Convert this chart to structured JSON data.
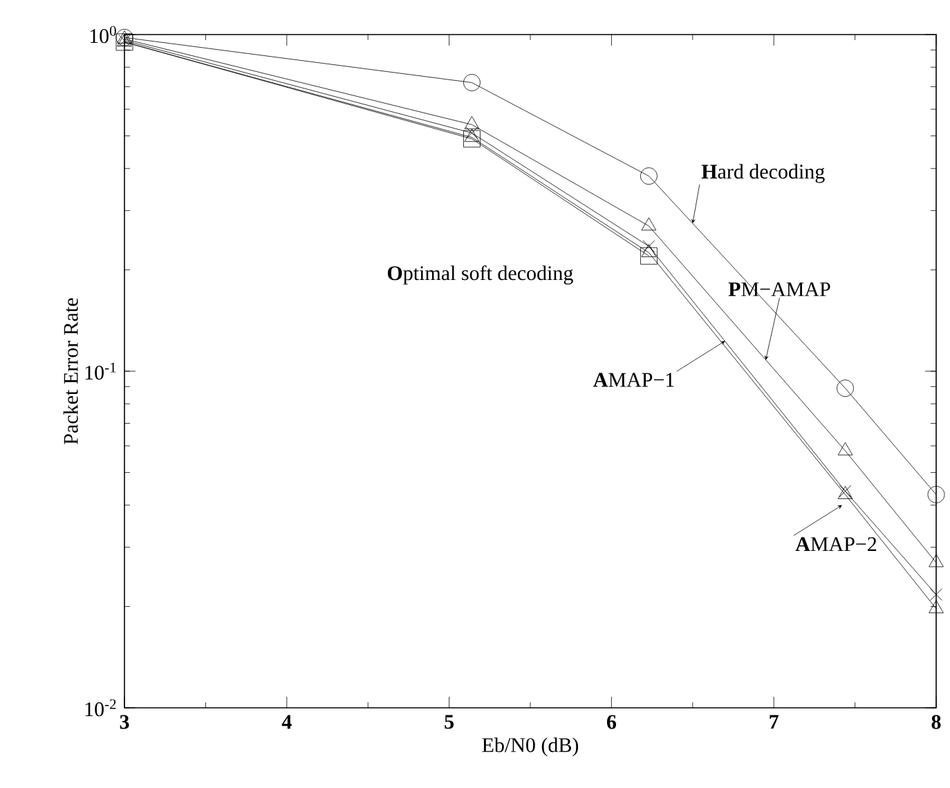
{
  "chart_data": {
    "type": "line",
    "xlabel": "Eb/N0 (dB)",
    "ylabel": "Packet Error Rate",
    "log": "y",
    "xlim": [
      3,
      8
    ],
    "ylim": [
      0.01,
      1
    ],
    "xticks": [
      3,
      4,
      5,
      6,
      7,
      8
    ],
    "yticks": [
      {
        "value": 0.01,
        "label": "10$^{-2}$"
      },
      {
        "value": 0.1,
        "label": "10$^{-1}$"
      },
      {
        "value": 1,
        "label": "10$^{0}$"
      }
    ],
    "grid": false,
    "line_style": "solid",
    "color": "#000000",
    "series": [
      {
        "x": [
          3,
          5.14,
          6.23,
          7.44,
          8
        ],
        "values": [
          0.98,
          0.72,
          0.38,
          0.089,
          0.043
        ],
        "marker": "circle"
      },
      {
        "x": [
          3,
          5.14,
          6.23,
          7.44,
          8
        ],
        "values": [
          0.97,
          0.54,
          0.27,
          0.058,
          0.027
        ],
        "marker": "triangle"
      },
      {
        "x": [
          3,
          5.14,
          6.23,
          7.44,
          8
        ],
        "values": [
          0.96,
          0.51,
          0.235,
          0.044,
          0.0217
        ],
        "marker": "cross"
      },
      {
        "x": [
          3,
          5.14,
          6.23
        ],
        "values": [
          0.95,
          0.49,
          0.22
        ],
        "marker": "square"
      },
      {
        "x": [
          3,
          5.14,
          6.23,
          7.44,
          8
        ],
        "values": [
          0.95,
          0.495,
          0.225,
          0.043,
          0.0197
        ],
        "marker": "triangle"
      }
    ],
    "annotations": [
      {
        "text": "**H**ard decoding",
        "x": 6.5,
        "y": 0.275
      },
      {
        "text": "**P**M−AMAP",
        "x": 6.95,
        "y": 0.108
      },
      {
        "text": "**A**MAP−1",
        "x": 6.7,
        "y": 0.123
      },
      {
        "text": "**A**MAP−2",
        "x": 7.42,
        "y": 0.04
      },
      "**O**ptimal soft decoding"
    ]
  }
}
